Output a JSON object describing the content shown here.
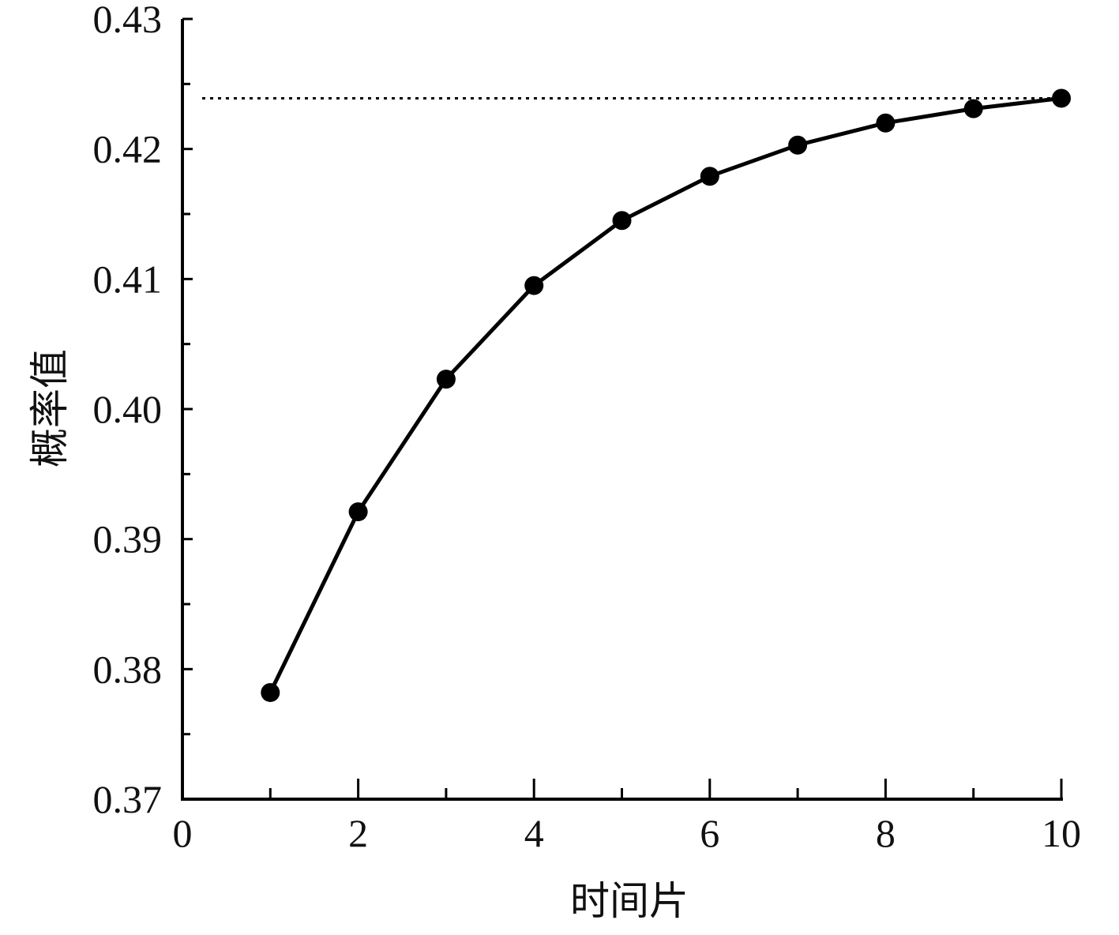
{
  "chart_data": {
    "type": "line",
    "xlabel": "时间片",
    "ylabel": "概率值",
    "xlim": [
      0,
      10
    ],
    "ylim": [
      0.37,
      0.43
    ],
    "x_ticks": [
      0,
      2,
      4,
      6,
      8,
      10
    ],
    "x_tick_labels": [
      "0",
      "2",
      "4",
      "6",
      "8",
      "10"
    ],
    "y_ticks": [
      0.37,
      0.38,
      0.39,
      0.4,
      0.41,
      0.42,
      0.43
    ],
    "y_tick_labels": [
      "0.37",
      "0.38",
      "0.39",
      "0.40",
      "0.41",
      "0.42",
      "0.43"
    ],
    "x_minor_step": 1,
    "y_minor_step": 0.005,
    "grid": false,
    "series": [
      {
        "x": [
          1,
          2,
          3,
          4,
          5,
          6,
          7,
          8,
          9,
          10
        ],
        "y": [
          0.3782,
          0.3921,
          0.4023,
          0.4095,
          0.4145,
          0.4179,
          0.4203,
          0.422,
          0.4231,
          0.4239
        ],
        "color": "#000000",
        "marker": "filled-circle",
        "line_style": "solid"
      }
    ],
    "reference_line": {
      "y": 0.4239,
      "style": "dotted",
      "color": "#000000"
    }
  }
}
